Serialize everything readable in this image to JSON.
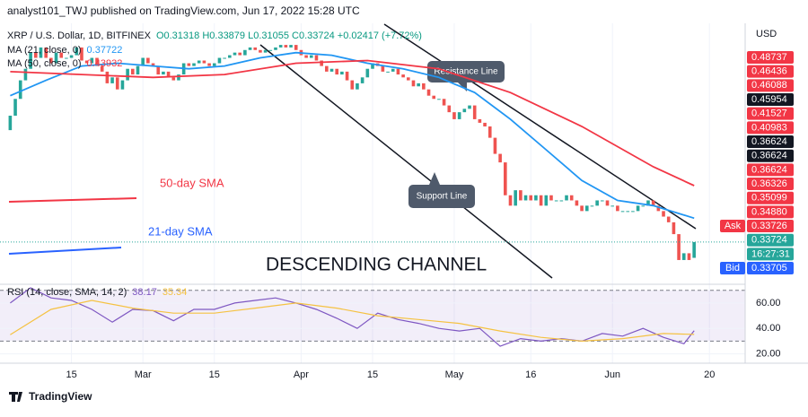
{
  "header": {
    "title": "analyst101_TWJ published on TradingView.com, Jun 17, 2022 15:28 UTC"
  },
  "footer": {
    "brand": "TradingView"
  },
  "annotations": {
    "sma50": "50-day SMA",
    "sma21": "21-day SMA",
    "channel": "DESCENDING CHANNEL",
    "resistance": "Resistance Line",
    "support": "Support Line"
  },
  "chart_data": [
    {
      "type": "candlestick",
      "title": "XRP / U.S. Dollar, 1D, BITFINEX",
      "subtitle": "O0.31318 H0.33879 L0.31055 C0.33724 +0.02417 (+7.72%)",
      "up_color": "#26a69a",
      "down_color": "#ef5350",
      "log_scale": true,
      "ylim": [
        0.279,
        0.925
      ],
      "xlim": [
        "2022-02-01",
        "2022-06-27"
      ],
      "xticks": [
        {
          "value": "2022-02-15",
          "label": "15"
        },
        {
          "value": "2022-03-01",
          "label": "Mar"
        },
        {
          "value": "2022-03-15",
          "label": "15"
        },
        {
          "value": "2022-04-01",
          "label": "Apr"
        },
        {
          "value": "2022-04-15",
          "label": "15"
        },
        {
          "value": "2022-05-01",
          "label": "May"
        },
        {
          "value": "2022-05-16",
          "label": "16"
        },
        {
          "value": "2022-06-01",
          "label": "Jun"
        },
        {
          "value": "2022-06-20",
          "label": "20"
        }
      ],
      "x": [
        "2022-02-03",
        "2022-02-04",
        "2022-02-05",
        "2022-02-06",
        "2022-02-07",
        "2022-02-08",
        "2022-02-09",
        "2022-02-10",
        "2022-02-11",
        "2022-02-12",
        "2022-02-13",
        "2022-02-14",
        "2022-02-15",
        "2022-02-16",
        "2022-02-17",
        "2022-02-18",
        "2022-02-19",
        "2022-02-20",
        "2022-02-21",
        "2022-02-22",
        "2022-02-23",
        "2022-02-24",
        "2022-02-25",
        "2022-02-26",
        "2022-02-27",
        "2022-02-28",
        "2022-03-01",
        "2022-03-02",
        "2022-03-03",
        "2022-03-04",
        "2022-03-05",
        "2022-03-06",
        "2022-03-07",
        "2022-03-08",
        "2022-03-09",
        "2022-03-10",
        "2022-03-11",
        "2022-03-12",
        "2022-03-13",
        "2022-03-14",
        "2022-03-15",
        "2022-03-16",
        "2022-03-17",
        "2022-03-18",
        "2022-03-19",
        "2022-03-20",
        "2022-03-21",
        "2022-03-22",
        "2022-03-23",
        "2022-03-24",
        "2022-03-25",
        "2022-03-26",
        "2022-03-27",
        "2022-03-28",
        "2022-03-29",
        "2022-03-30",
        "2022-03-31",
        "2022-04-01",
        "2022-04-02",
        "2022-04-03",
        "2022-04-04",
        "2022-04-05",
        "2022-04-06",
        "2022-04-07",
        "2022-04-08",
        "2022-04-09",
        "2022-04-10",
        "2022-04-11",
        "2022-04-12",
        "2022-04-13",
        "2022-04-14",
        "2022-04-15",
        "2022-04-16",
        "2022-04-17",
        "2022-04-18",
        "2022-04-19",
        "2022-04-20",
        "2022-04-21",
        "2022-04-22",
        "2022-04-23",
        "2022-04-24",
        "2022-04-25",
        "2022-04-26",
        "2022-04-27",
        "2022-04-28",
        "2022-04-29",
        "2022-04-30",
        "2022-05-01",
        "2022-05-02",
        "2022-05-03",
        "2022-05-04",
        "2022-05-05",
        "2022-05-06",
        "2022-05-07",
        "2022-05-08",
        "2022-05-09",
        "2022-05-10",
        "2022-05-11",
        "2022-05-12",
        "2022-05-13",
        "2022-05-14",
        "2022-05-15",
        "2022-05-16",
        "2022-05-17",
        "2022-05-18",
        "2022-05-19",
        "2022-05-20",
        "2022-05-21",
        "2022-05-22",
        "2022-05-23",
        "2022-05-24",
        "2022-05-25",
        "2022-05-26",
        "2022-05-27",
        "2022-05-28",
        "2022-05-29",
        "2022-05-30",
        "2022-05-31",
        "2022-06-01",
        "2022-06-02",
        "2022-06-03",
        "2022-06-04",
        "2022-06-05",
        "2022-06-06",
        "2022-06-07",
        "2022-06-08",
        "2022-06-09",
        "2022-06-10",
        "2022-06-11",
        "2022-06-12",
        "2022-06-13",
        "2022-06-14",
        "2022-06-15",
        "2022-06-16",
        "2022-06-17"
      ],
      "open": [
        0.57,
        0.61,
        0.66,
        0.72,
        0.76,
        0.82,
        0.8,
        0.84,
        0.8,
        0.78,
        0.82,
        0.8,
        0.8,
        0.81,
        0.84,
        0.79,
        0.78,
        0.8,
        0.77,
        0.75,
        0.71,
        0.73,
        0.69,
        0.72,
        0.76,
        0.74,
        0.77,
        0.8,
        0.78,
        0.77,
        0.74,
        0.75,
        0.73,
        0.72,
        0.74,
        0.78,
        0.77,
        0.78,
        0.79,
        0.78,
        0.77,
        0.78,
        0.8,
        0.8,
        0.81,
        0.82,
        0.81,
        0.83,
        0.84,
        0.83,
        0.82,
        0.83,
        0.83,
        0.84,
        0.85,
        0.84,
        0.85,
        0.83,
        0.81,
        0.8,
        0.81,
        0.79,
        0.77,
        0.75,
        0.76,
        0.74,
        0.75,
        0.72,
        0.69,
        0.71,
        0.73,
        0.76,
        0.78,
        0.77,
        0.75,
        0.75,
        0.76,
        0.74,
        0.73,
        0.72,
        0.7,
        0.71,
        0.69,
        0.67,
        0.66,
        0.66,
        0.64,
        0.62,
        0.6,
        0.62,
        0.63,
        0.64,
        0.6,
        0.59,
        0.58,
        0.55,
        0.51,
        0.49,
        0.42,
        0.4,
        0.43,
        0.41,
        0.42,
        0.41,
        0.42,
        0.4,
        0.42,
        0.41,
        0.41,
        0.41,
        0.42,
        0.41,
        0.4,
        0.39,
        0.4,
        0.4,
        0.41,
        0.41,
        0.4,
        0.4,
        0.39,
        0.39,
        0.39,
        0.39,
        0.4,
        0.4,
        0.41,
        0.4,
        0.39,
        0.38,
        0.37,
        0.35,
        0.31,
        0.32,
        0.31318
      ],
      "close": [
        0.61,
        0.66,
        0.72,
        0.76,
        0.82,
        0.8,
        0.84,
        0.8,
        0.78,
        0.82,
        0.8,
        0.8,
        0.81,
        0.84,
        0.79,
        0.78,
        0.8,
        0.77,
        0.75,
        0.71,
        0.73,
        0.69,
        0.72,
        0.76,
        0.74,
        0.77,
        0.8,
        0.78,
        0.77,
        0.74,
        0.75,
        0.73,
        0.72,
        0.74,
        0.78,
        0.77,
        0.78,
        0.79,
        0.78,
        0.77,
        0.78,
        0.8,
        0.8,
        0.81,
        0.82,
        0.81,
        0.83,
        0.84,
        0.83,
        0.82,
        0.83,
        0.83,
        0.84,
        0.85,
        0.84,
        0.85,
        0.83,
        0.81,
        0.8,
        0.81,
        0.79,
        0.77,
        0.75,
        0.76,
        0.74,
        0.75,
        0.72,
        0.69,
        0.71,
        0.73,
        0.76,
        0.78,
        0.77,
        0.75,
        0.75,
        0.76,
        0.74,
        0.73,
        0.72,
        0.7,
        0.71,
        0.69,
        0.67,
        0.66,
        0.66,
        0.64,
        0.62,
        0.6,
        0.62,
        0.63,
        0.64,
        0.6,
        0.59,
        0.58,
        0.55,
        0.51,
        0.49,
        0.42,
        0.4,
        0.43,
        0.41,
        0.42,
        0.41,
        0.42,
        0.4,
        0.42,
        0.41,
        0.41,
        0.41,
        0.42,
        0.41,
        0.4,
        0.39,
        0.4,
        0.4,
        0.41,
        0.41,
        0.4,
        0.4,
        0.39,
        0.39,
        0.39,
        0.39,
        0.4,
        0.4,
        0.41,
        0.4,
        0.39,
        0.38,
        0.37,
        0.35,
        0.31,
        0.32,
        0.31,
        0.33724
      ],
      "series": [
        {
          "name": "MA (21, close, 0)",
          "color": "#2196f3",
          "x": [
            "2022-02-03",
            "2022-02-10",
            "2022-02-17",
            "2022-02-24",
            "2022-03-03",
            "2022-03-10",
            "2022-03-17",
            "2022-03-24",
            "2022-03-31",
            "2022-04-07",
            "2022-04-14",
            "2022-04-21",
            "2022-04-28",
            "2022-05-05",
            "2022-05-12",
            "2022-05-19",
            "2022-05-26",
            "2022-06-02",
            "2022-06-09",
            "2022-06-17"
          ],
          "values": [
            0.67,
            0.72,
            0.77,
            0.78,
            0.77,
            0.76,
            0.77,
            0.8,
            0.82,
            0.81,
            0.78,
            0.76,
            0.73,
            0.68,
            0.6,
            0.52,
            0.45,
            0.41,
            0.4,
            0.37722
          ]
        },
        {
          "name": "MA (50, close, 0)",
          "color": "#f23645",
          "x": [
            "2022-02-03",
            "2022-02-17",
            "2022-03-03",
            "2022-03-17",
            "2022-03-31",
            "2022-04-14",
            "2022-04-28",
            "2022-05-12",
            "2022-05-26",
            "2022-06-09",
            "2022-06-17"
          ],
          "values": [
            0.75,
            0.74,
            0.73,
            0.74,
            0.78,
            0.79,
            0.76,
            0.68,
            0.58,
            0.48,
            0.43932
          ]
        }
      ],
      "currency": "USD",
      "price_tags": [
        {
          "label": "0.48737",
          "color": "#f23645"
        },
        {
          "label": "0.46436",
          "color": "#f23645"
        },
        {
          "label": "0.46088",
          "color": "#f23645"
        },
        {
          "label": "0.45954",
          "color": "#131722"
        },
        {
          "label": "0.41527",
          "color": "#f23645"
        },
        {
          "label": "0.40983",
          "color": "#f23645"
        },
        {
          "label": "0.36624",
          "color": "#131722"
        },
        {
          "label": "0.36624",
          "color": "#131722"
        },
        {
          "label": "0.36624",
          "color": "#f23645"
        },
        {
          "label": "0.36326",
          "color": "#f23645"
        },
        {
          "label": "0.35099",
          "color": "#f23645"
        },
        {
          "label": "0.34880",
          "color": "#f23645"
        },
        {
          "name": "Ask",
          "label": "0.33726",
          "color": "#f23645"
        },
        {
          "label": "0.33724",
          "color": "#26a69a"
        },
        {
          "label": "16:27:31",
          "color": "#26a69a"
        },
        {
          "name": "Bid",
          "label": "0.33705",
          "color": "#2962ff"
        }
      ]
    },
    {
      "type": "line",
      "title": "RSI (14, close, SMA, 14, 2)",
      "ylim": [
        14.8,
        72.6
      ],
      "bands": [
        30,
        70
      ],
      "yticks": [
        {
          "value": 20,
          "label": "20.00"
        },
        {
          "value": 40,
          "label": "40.00"
        },
        {
          "value": 60,
          "label": "60.00"
        }
      ],
      "series": [
        {
          "name": "RSI",
          "color": "#7e57c2",
          "x": [
            "2022-02-03",
            "2022-02-07",
            "2022-02-11",
            "2022-02-15",
            "2022-02-19",
            "2022-02-23",
            "2022-02-27",
            "2022-03-03",
            "2022-03-07",
            "2022-03-11",
            "2022-03-15",
            "2022-03-19",
            "2022-03-23",
            "2022-03-27",
            "2022-03-31",
            "2022-04-04",
            "2022-04-08",
            "2022-04-12",
            "2022-04-16",
            "2022-04-20",
            "2022-04-24",
            "2022-04-28",
            "2022-05-02",
            "2022-05-06",
            "2022-05-10",
            "2022-05-14",
            "2022-05-18",
            "2022-05-22",
            "2022-05-26",
            "2022-05-30",
            "2022-06-03",
            "2022-06-07",
            "2022-06-11",
            "2022-06-15",
            "2022-06-17"
          ],
          "values": [
            60,
            72,
            64,
            62,
            55,
            45,
            55,
            54,
            46,
            55,
            55,
            60,
            62,
            64,
            60,
            55,
            48,
            40,
            52,
            47,
            44,
            40,
            38,
            40,
            26,
            32,
            30,
            32,
            30,
            36,
            34,
            40,
            33,
            28,
            38.17
          ]
        },
        {
          "name": "SMA",
          "color": "#f5c242",
          "x": [
            "2022-02-03",
            "2022-02-11",
            "2022-02-19",
            "2022-02-27",
            "2022-03-07",
            "2022-03-15",
            "2022-03-23",
            "2022-03-31",
            "2022-04-08",
            "2022-04-16",
            "2022-04-24",
            "2022-05-02",
            "2022-05-10",
            "2022-05-18",
            "2022-05-26",
            "2022-06-03",
            "2022-06-11",
            "2022-06-17"
          ],
          "values": [
            35,
            55,
            62,
            56,
            52,
            52,
            56,
            60,
            56,
            50,
            47,
            44,
            38,
            33,
            30,
            32,
            36,
            35.34
          ]
        }
      ]
    }
  ]
}
